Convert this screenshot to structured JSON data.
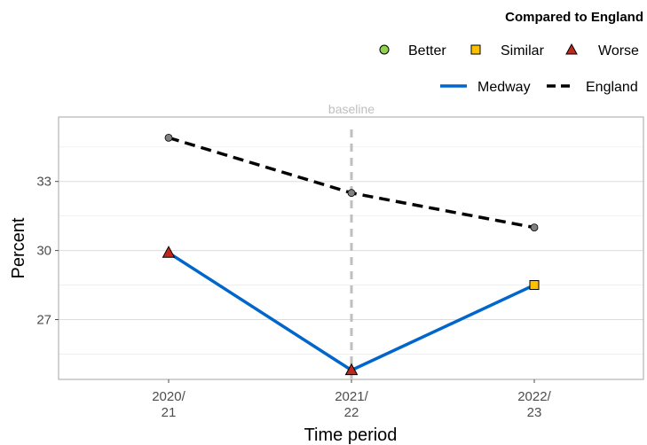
{
  "chart_data": {
    "type": "line",
    "categories": [
      "2020/\n21",
      "2021/\n22",
      "2022/\n23"
    ],
    "xlabel": "Time period",
    "ylabel": "Percent",
    "ylim": [
      24.4,
      35.8
    ],
    "yticks": [
      27,
      30,
      33
    ],
    "grid": true,
    "series": [
      {
        "name": "Medway",
        "values": [
          29.9,
          24.8,
          28.5
        ],
        "color": "#0066cc",
        "style": "solid",
        "compared": [
          "Worse",
          "Worse",
          "Similar"
        ]
      },
      {
        "name": "England",
        "values": [
          34.9,
          32.5,
          31.0
        ],
        "color": "#000000",
        "style": "dashed"
      }
    ],
    "baseline": {
      "label": "baseline",
      "category_index": 1,
      "color": "#bfbfbf"
    },
    "legend": {
      "position": "top-right",
      "title": "Compared to England",
      "comparison": [
        {
          "label": "Better",
          "shape": "circle",
          "color": "#92d050"
        },
        {
          "label": "Similar",
          "shape": "square",
          "color": "#ffc000"
        },
        {
          "label": "Worse",
          "shape": "triangle",
          "color": "#c0281e"
        }
      ]
    }
  }
}
